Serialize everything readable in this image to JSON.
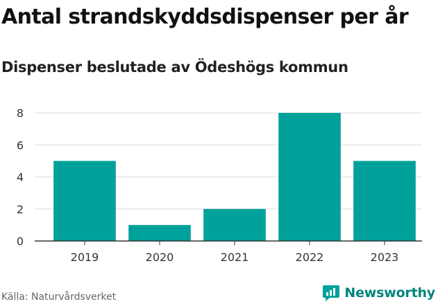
{
  "title": "Antal strandskyddsdispenser per år",
  "subtitle": "Dispenser beslutade av Ödeshögs kommun",
  "source": "Källa: Naturvårdsverket",
  "brand": {
    "name": "Newsworthy",
    "icon": "newsworthy-logo-icon",
    "color": "#00a19a"
  },
  "chart_data": {
    "type": "bar",
    "categories": [
      "2019",
      "2020",
      "2021",
      "2022",
      "2023"
    ],
    "values": [
      5,
      1,
      2,
      8,
      5
    ],
    "title": "Antal strandskyddsdispenser per år",
    "subtitle": "Dispenser beslutade av Ödeshögs kommun",
    "xlabel": "",
    "ylabel": "",
    "ylim": [
      0,
      8
    ],
    "yticks": [
      "0",
      "2",
      "4",
      "6",
      "8"
    ],
    "grid": true,
    "legend": "none",
    "bar_color": "#00a19a"
  }
}
